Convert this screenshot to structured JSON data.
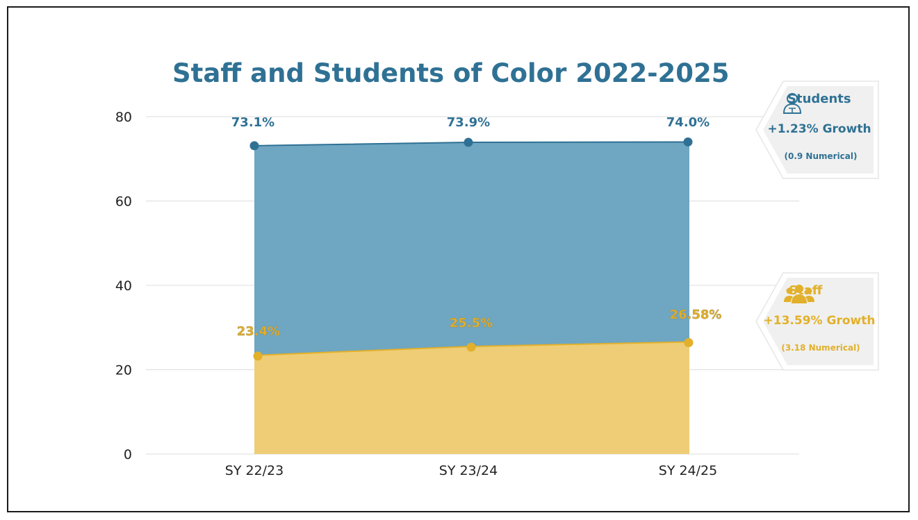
{
  "colors": {
    "students": "#2f7194",
    "students_fill": "#6fa6c1",
    "staff": "#e2b02a",
    "staff_fill": "#efcd76",
    "callout_bg": "#f0f0f0",
    "grid": "#dcdcdc"
  },
  "chart_data": {
    "type": "area",
    "title": "Staff and Students of Color 2022-2025",
    "categories": [
      "SY 22/23",
      "SY 23/24",
      "SY 24/25"
    ],
    "ylim": [
      0,
      80
    ],
    "yticks": [
      0,
      20,
      40,
      60,
      80
    ],
    "grid": true,
    "series": [
      {
        "name": "Students",
        "values": [
          73.1,
          73.9,
          74.0
        ],
        "labels": [
          "73.1%",
          "73.9%",
          "74.0%"
        ]
      },
      {
        "name": "Staff",
        "values": [
          23.4,
          25.5,
          26.58
        ],
        "labels": [
          "23.4%",
          "25.5%",
          "26.58%"
        ]
      }
    ]
  },
  "callouts": {
    "students": {
      "title": "Students",
      "growth": "+1.23% Growth",
      "numerical": "(0.9 Numerical)",
      "icon": "student-icon"
    },
    "staff": {
      "title": "Staff",
      "growth": "+13.59% Growth",
      "numerical": "(3.18 Numerical)",
      "icon": "people-group-icon"
    }
  }
}
